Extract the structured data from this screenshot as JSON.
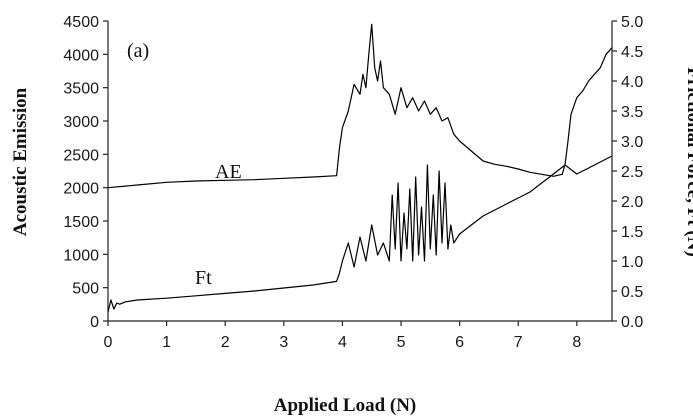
{
  "chart_data": {
    "type": "line",
    "panel_label": "(a)",
    "xlabel": "Applied Load (N)",
    "ylabel": "Acoustic Emission",
    "y2label": "Frictional Force, Ft (N)",
    "xlim": [
      0,
      8.6
    ],
    "ylim": [
      0,
      4500
    ],
    "y2lim": [
      0,
      5.0
    ],
    "xticks": [
      "0",
      "1",
      "2",
      "3",
      "4",
      "5",
      "6",
      "7",
      "8"
    ],
    "yticks": [
      "0",
      "500",
      "1000",
      "1500",
      "2000",
      "2500",
      "3000",
      "3500",
      "4000",
      "4500"
    ],
    "y2ticks": [
      "0.0",
      "0.5",
      "1.0",
      "1.5",
      "2.0",
      "2.5",
      "3.0",
      "3.5",
      "4.0",
      "4.5",
      "5.0"
    ],
    "series": [
      {
        "name": "AE",
        "axis": "left",
        "x": [
          0,
          0.5,
          1,
          1.5,
          2,
          2.5,
          3,
          3.5,
          3.9,
          3.95,
          4.0,
          4.1,
          4.2,
          4.3,
          4.35,
          4.4,
          4.45,
          4.5,
          4.55,
          4.6,
          4.65,
          4.7,
          4.8,
          4.9,
          5.0,
          5.1,
          5.2,
          5.3,
          5.4,
          5.5,
          5.6,
          5.7,
          5.8,
          5.9,
          6.0,
          6.2,
          6.4,
          6.6,
          6.8,
          7.0,
          7.2,
          7.4,
          7.6,
          7.75,
          7.8,
          7.85,
          7.9,
          8.0,
          8.1,
          8.2,
          8.3,
          8.4,
          8.5,
          8.6
        ],
        "y": [
          2000,
          2040,
          2080,
          2100,
          2110,
          2120,
          2140,
          2160,
          2180,
          2600,
          2900,
          3150,
          3550,
          3400,
          3700,
          3500,
          4000,
          4450,
          3800,
          3600,
          3900,
          3500,
          3400,
          3100,
          3500,
          3200,
          3350,
          3150,
          3300,
          3100,
          3200,
          3000,
          3050,
          2800,
          2700,
          2550,
          2400,
          2350,
          2320,
          2280,
          2230,
          2200,
          2170,
          2200,
          2350,
          2700,
          3100,
          3350,
          3450,
          3600,
          3700,
          3800,
          4000,
          4100
        ]
      },
      {
        "name": "Ft",
        "axis": "right",
        "x": [
          0,
          0.05,
          0.1,
          0.15,
          0.2,
          0.3,
          0.5,
          1,
          1.5,
          2,
          2.5,
          3,
          3.5,
          3.9,
          3.95,
          4.0,
          4.1,
          4.2,
          4.3,
          4.4,
          4.5,
          4.6,
          4.7,
          4.8,
          4.85,
          4.9,
          4.95,
          5.0,
          5.05,
          5.1,
          5.15,
          5.2,
          5.25,
          5.3,
          5.35,
          5.4,
          5.45,
          5.5,
          5.55,
          5.6,
          5.65,
          5.7,
          5.75,
          5.8,
          5.85,
          5.9,
          6.0,
          6.2,
          6.4,
          6.6,
          6.8,
          7.0,
          7.2,
          7.4,
          7.6,
          7.8,
          8.0,
          8.2,
          8.4,
          8.6
        ],
        "y": [
          0.15,
          0.35,
          0.2,
          0.3,
          0.28,
          0.32,
          0.35,
          0.38,
          0.42,
          0.46,
          0.5,
          0.55,
          0.6,
          0.66,
          0.8,
          1.0,
          1.3,
          0.9,
          1.4,
          1.0,
          1.6,
          1.1,
          1.3,
          1.0,
          2.1,
          1.2,
          2.3,
          1.0,
          1.8,
          1.2,
          2.2,
          1.0,
          2.4,
          1.1,
          1.9,
          1.0,
          2.6,
          1.2,
          2.1,
          1.1,
          2.5,
          1.3,
          2.3,
          1.2,
          1.6,
          1.3,
          1.45,
          1.6,
          1.75,
          1.85,
          1.95,
          2.05,
          2.15,
          2.3,
          2.45,
          2.6,
          2.45,
          2.55,
          2.65,
          2.75
        ]
      }
    ]
  }
}
